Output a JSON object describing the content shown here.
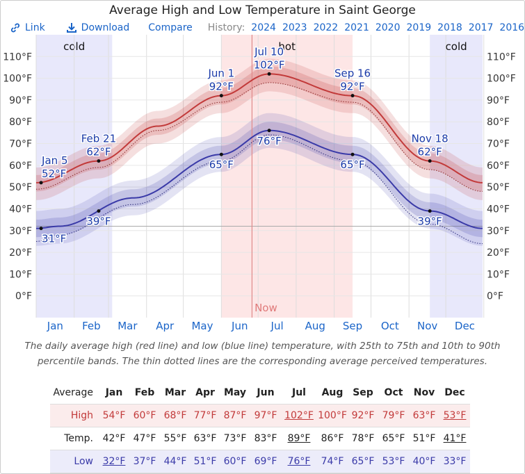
{
  "title": "Average High and Low Temperature in Saint George",
  "toolbar": {
    "link_label": "Link",
    "download_label": "Download",
    "compare_label": "Compare",
    "history_label": "History:",
    "years": [
      "2024",
      "2023",
      "2022",
      "2021",
      "2020",
      "2019",
      "2018",
      "2017",
      "2016"
    ]
  },
  "chart_data": {
    "type": "line",
    "title": "Average High and Low Temperature in Saint George",
    "xlabel": "",
    "ylabel": "",
    "y_unit": "°F",
    "ylim": [
      -10,
      120
    ],
    "yticks": [
      0,
      10,
      20,
      30,
      40,
      50,
      60,
      70,
      80,
      90,
      100,
      110
    ],
    "ytick_labels": [
      "0°F",
      "10°F",
      "20°F",
      "30°F",
      "40°F",
      "50°F",
      "60°F",
      "70°F",
      "80°F",
      "90°F",
      "100°F",
      "110°F"
    ],
    "months": [
      "Jan",
      "Feb",
      "Mar",
      "Apr",
      "May",
      "Jun",
      "Jul",
      "Aug",
      "Sep",
      "Oct",
      "Nov",
      "Dec"
    ],
    "freezing_line": 32,
    "now_label": "Now",
    "now_day_of_year": 177,
    "seasons": [
      {
        "label": "cold",
        "start_doy": 1,
        "end_doy": 63
      },
      {
        "label": "hot",
        "start_doy": 152,
        "end_doy": 259
      },
      {
        "label": "cold",
        "start_doy": 322,
        "end_doy": 365
      }
    ],
    "series": [
      {
        "name": "Average High",
        "color": "#c23a3a",
        "days": [
          1,
          52,
          100,
          152,
          191,
          259,
          322,
          365
        ],
        "values": [
          52,
          62,
          78,
          92,
          102,
          92,
          62,
          52
        ]
      },
      {
        "name": "Average Low",
        "color": "#3a3aa8",
        "days": [
          1,
          20,
          80,
          152,
          191,
          259,
          322,
          365
        ],
        "values": [
          31,
          32,
          45,
          65,
          76,
          65,
          39,
          31
        ]
      },
      {
        "name": "Perceived High",
        "style": "dotted",
        "days": [
          1,
          52,
          100,
          152,
          191,
          259,
          322,
          365
        ],
        "values": [
          49,
          59,
          76,
          89,
          98,
          89,
          58,
          48
        ]
      },
      {
        "name": "Perceived Low",
        "style": "dotted",
        "days": [
          1,
          20,
          80,
          152,
          191,
          259,
          322,
          365
        ],
        "values": [
          25,
          28,
          42,
          62,
          74,
          62,
          33,
          24
        ]
      }
    ],
    "annotations": [
      {
        "series": "high",
        "date": "Jan 5",
        "doy": 5,
        "value": 52,
        "label": "52°F",
        "pos": "above"
      },
      {
        "series": "high",
        "date": "Feb 21",
        "doy": 52,
        "value": 62,
        "label": "62°F",
        "pos": "above"
      },
      {
        "series": "high",
        "date": "Jun 1",
        "doy": 152,
        "value": 92,
        "label": "92°F",
        "pos": "above"
      },
      {
        "series": "high",
        "date": "Jul 10",
        "doy": 191,
        "value": 102,
        "label": "102°F",
        "pos": "above"
      },
      {
        "series": "high",
        "date": "Sep 16",
        "doy": 259,
        "value": 92,
        "label": "92°F",
        "pos": "above"
      },
      {
        "series": "high",
        "date": "Nov 18",
        "doy": 322,
        "value": 62,
        "label": "62°F",
        "pos": "above"
      },
      {
        "series": "low",
        "date": "",
        "doy": 5,
        "value": 31,
        "label": "31°F",
        "pos": "below"
      },
      {
        "series": "low",
        "date": "",
        "doy": 52,
        "value": 39,
        "label": "39°F",
        "pos": "below"
      },
      {
        "series": "low",
        "date": "",
        "doy": 152,
        "value": 65,
        "label": "65°F",
        "pos": "below"
      },
      {
        "series": "low",
        "date": "",
        "doy": 191,
        "value": 76,
        "label": "76°F",
        "pos": "below"
      },
      {
        "series": "low",
        "date": "",
        "doy": 259,
        "value": 65,
        "label": "65°F",
        "pos": "below"
      },
      {
        "series": "low",
        "date": "",
        "doy": 322,
        "value": 39,
        "label": "39°F",
        "pos": "below"
      }
    ]
  },
  "caption": "The daily average high (red line) and low (blue line) temperature, with 25th to 75th and 10th to 90th percentile bands. The thin dotted lines are the corresponding average perceived temperatures.",
  "table": {
    "header_label": "Average",
    "months": [
      "Jan",
      "Feb",
      "Mar",
      "Apr",
      "May",
      "Jun",
      "Jul",
      "Aug",
      "Sep",
      "Oct",
      "Nov",
      "Dec"
    ],
    "rows": [
      {
        "label": "High",
        "cls": "high",
        "values": [
          "54°F",
          "60°F",
          "68°F",
          "77°F",
          "87°F",
          "97°F",
          "102°F",
          "100°F",
          "92°F",
          "79°F",
          "63°F",
          "53°F"
        ],
        "underline": [
          6,
          11
        ]
      },
      {
        "label": "Temp.",
        "cls": "temp",
        "values": [
          "42°F",
          "47°F",
          "55°F",
          "63°F",
          "73°F",
          "83°F",
          "89°F",
          "86°F",
          "78°F",
          "65°F",
          "51°F",
          "41°F"
        ],
        "underline": [
          6,
          11
        ]
      },
      {
        "label": "Low",
        "cls": "low",
        "values": [
          "32°F",
          "37°F",
          "44°F",
          "51°F",
          "60°F",
          "69°F",
          "76°F",
          "74°F",
          "65°F",
          "53°F",
          "40°F",
          "33°F"
        ],
        "underline": [
          0,
          6
        ]
      }
    ]
  },
  "colors": {
    "high": "#c23a3a",
    "low": "#3a3aa8",
    "accent": "#1a64c8"
  }
}
